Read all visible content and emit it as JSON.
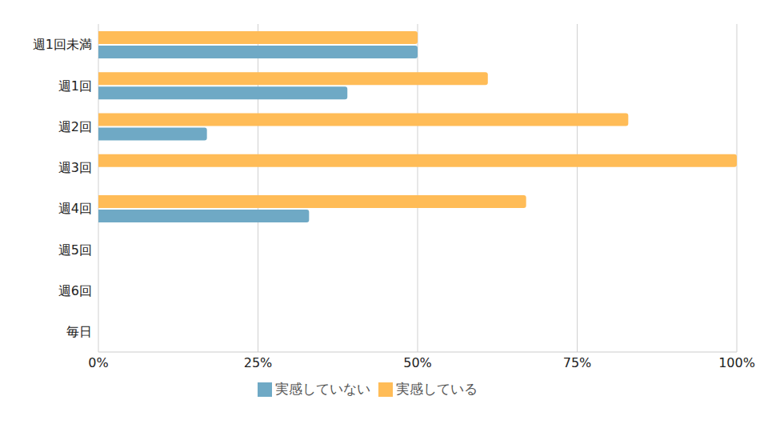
{
  "chart_data": {
    "type": "bar",
    "orientation": "horizontal",
    "categories": [
      "週1回未満",
      "週1回",
      "週2回",
      "週3回",
      "週4回",
      "週5回",
      "週6回",
      "毎日"
    ],
    "series": [
      {
        "name": "実感している",
        "color": "#FFBC57",
        "values": [
          50,
          61,
          83,
          100,
          67,
          null,
          null,
          null
        ]
      },
      {
        "name": "実感していない",
        "color": "#6FA9C5",
        "values": [
          50,
          39,
          17,
          0,
          33,
          null,
          null,
          null
        ]
      }
    ],
    "xlim": [
      0,
      100
    ],
    "xticks": [
      {
        "value": 0,
        "label": "0%"
      },
      {
        "value": 25,
        "label": "25%"
      },
      {
        "value": 50,
        "label": "50%"
      },
      {
        "value": 75,
        "label": "75%"
      },
      {
        "value": 100,
        "label": "100%"
      }
    ],
    "grid": true,
    "legend": "bottom"
  }
}
